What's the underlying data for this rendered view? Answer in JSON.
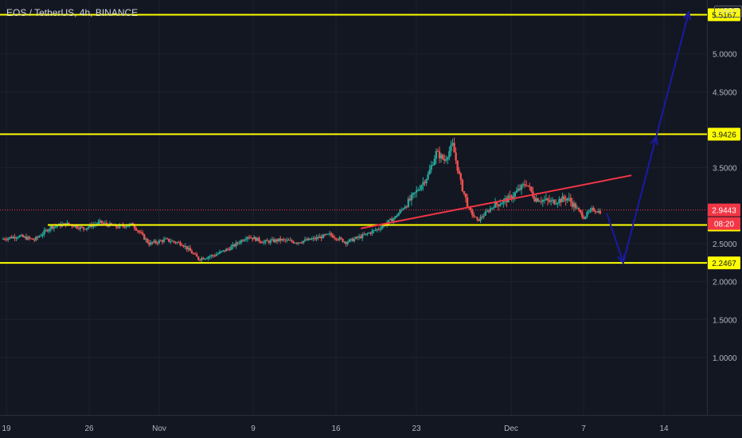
{
  "header": {
    "title": "EOS / TetherUS, 4h, BINANCE",
    "currency": "USDT"
  },
  "chart_data": {
    "type": "candlestick",
    "title": "EOS / TetherUS, 4h, BINANCE",
    "y_ticks": [
      "5.0000",
      "4.5000",
      "3.5000",
      "2.5000",
      "2.0000",
      "1.5000",
      "1.0000"
    ],
    "y_tick_values": [
      5.0,
      4.5,
      3.5,
      2.5,
      2.0,
      1.5,
      1.0
    ],
    "x_ticks": [
      "19",
      "26",
      "Nov",
      "9",
      "16",
      "23",
      "Dec",
      "7",
      "14"
    ],
    "horizontal_levels": [
      {
        "label": "5.5167",
        "value": 5.5167,
        "color": "#ffff00"
      },
      {
        "label": "3.9426",
        "value": 3.9426,
        "color": "#ffff00"
      },
      {
        "label": "2.7456",
        "value": 2.7456,
        "color": "#ffff00"
      },
      {
        "label": "2.2467",
        "value": 2.2467,
        "color": "#ffff00"
      }
    ],
    "current_price": {
      "label": "2.9443",
      "value": 2.9443,
      "color": "#f23645"
    },
    "countdown": "08:20",
    "price_path": [
      [
        0,
        2.56
      ],
      [
        2,
        2.6
      ],
      [
        4,
        2.55
      ],
      [
        6,
        2.72
      ],
      [
        8,
        2.76
      ],
      [
        10,
        2.7
      ],
      [
        12,
        2.78
      ],
      [
        14,
        2.72
      ],
      [
        16,
        2.75
      ],
      [
        18,
        2.5
      ],
      [
        20,
        2.55
      ],
      [
        22,
        2.5
      ],
      [
        24,
        2.3
      ],
      [
        26,
        2.35
      ],
      [
        28,
        2.45
      ],
      [
        30,
        2.6
      ],
      [
        32,
        2.52
      ],
      [
        34,
        2.55
      ],
      [
        36,
        2.52
      ],
      [
        38,
        2.56
      ],
      [
        40,
        2.62
      ],
      [
        42,
        2.52
      ],
      [
        44,
        2.6
      ],
      [
        46,
        2.7
      ],
      [
        48,
        2.85
      ],
      [
        50,
        3.1
      ],
      [
        52,
        3.4
      ],
      [
        53,
        3.7
      ],
      [
        54,
        3.6
      ],
      [
        55,
        3.8
      ],
      [
        56,
        3.3
      ],
      [
        57,
        2.95
      ],
      [
        58,
        2.8
      ],
      [
        60,
        3.0
      ],
      [
        62,
        3.1
      ],
      [
        64,
        3.3
      ],
      [
        65,
        3.1
      ],
      [
        67,
        3.05
      ],
      [
        69,
        3.1
      ],
      [
        70,
        2.98
      ],
      [
        71,
        2.85
      ],
      [
        72,
        2.95
      ],
      [
        73,
        2.92
      ]
    ],
    "trendline": {
      "color": "#f23645",
      "from": [
        44,
        2.7
      ],
      "to": [
        77,
        3.4
      ]
    },
    "projection_arrow": {
      "color": "#1a1aa5",
      "points": [
        [
          74,
          2.9
        ],
        [
          76,
          2.25
        ],
        [
          80,
          3.9
        ],
        [
          84,
          5.55
        ]
      ]
    }
  }
}
